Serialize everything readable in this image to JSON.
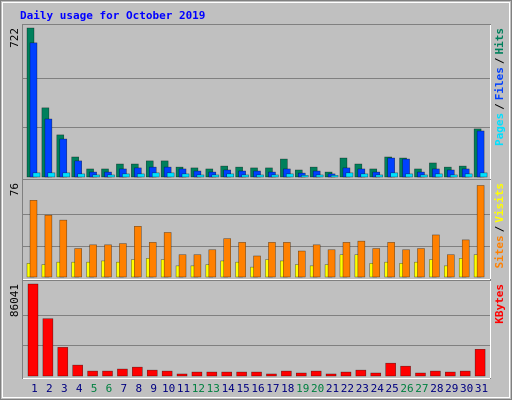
{
  "chart_data": [
    {
      "type": "bar",
      "title": "Daily usage for October 2019",
      "ylim": [
        0,
        722
      ],
      "yticks": [
        722
      ],
      "grid": true,
      "series": [
        {
          "name": "Hits",
          "color": "#00805c",
          "values": [
            722,
            335,
            204,
            97,
            39,
            39,
            63,
            63,
            78,
            78,
            48,
            44,
            39,
            53,
            48,
            44,
            44,
            87,
            34,
            48,
            24,
            92,
            63,
            39,
            97,
            92,
            39,
            68,
            48,
            53,
            233
          ]
        },
        {
          "name": "Files",
          "color": "#0040ff",
          "values": [
            650,
            281,
            184,
            78,
            24,
            24,
            39,
            44,
            48,
            48,
            39,
            29,
            24,
            34,
            29,
            29,
            24,
            39,
            19,
            29,
            15,
            44,
            39,
            24,
            92,
            87,
            24,
            39,
            34,
            39,
            223
          ]
        },
        {
          "name": "Pages",
          "color": "#00e0ff",
          "values": [
            20,
            20,
            20,
            15,
            10,
            10,
            15,
            15,
            20,
            20,
            15,
            10,
            10,
            15,
            10,
            10,
            10,
            15,
            8,
            10,
            8,
            20,
            15,
            10,
            20,
            15,
            10,
            15,
            10,
            15,
            20
          ]
        }
      ]
    },
    {
      "type": "bar",
      "ylim": [
        0,
        76
      ],
      "yticks": [
        76
      ],
      "grid": true,
      "series": [
        {
          "name": "Visits",
          "color": "#ffff00",
          "values": [
            11,
            10,
            12,
            12,
            12,
            13,
            12,
            14,
            15,
            14,
            9,
            9,
            10,
            13,
            12,
            8,
            14,
            13,
            10,
            9,
            10,
            18,
            18,
            11,
            12,
            11,
            12,
            14,
            9,
            15,
            18
          ]
        },
        {
          "name": "Sites",
          "color": "#ff8000",
          "values": [
            62,
            50,
            46,
            23,
            26,
            26,
            27,
            41,
            28,
            36,
            18,
            18,
            22,
            31,
            28,
            17,
            28,
            28,
            21,
            26,
            22,
            28,
            29,
            23,
            28,
            22,
            23,
            34,
            18,
            30,
            74
          ]
        }
      ]
    },
    {
      "type": "bar",
      "ylim": [
        0,
        86041
      ],
      "yticks": [
        86041
      ],
      "grid": true,
      "categories": [
        "1",
        "2",
        "3",
        "4",
        "5",
        "6",
        "7",
        "8",
        "9",
        "10",
        "11",
        "12",
        "13",
        "14",
        "15",
        "16",
        "17",
        "18",
        "19",
        "20",
        "21",
        "22",
        "23",
        "24",
        "25",
        "26",
        "27",
        "28",
        "29",
        "30",
        "31"
      ],
      "category_colors": [
        "#000080",
        "#000080",
        "#000080",
        "#000080",
        "#008040",
        "#008040",
        "#000080",
        "#000080",
        "#000080",
        "#000080",
        "#000080",
        "#008040",
        "#008040",
        "#000080",
        "#000080",
        "#000080",
        "#000080",
        "#000080",
        "#008040",
        "#008040",
        "#000080",
        "#000080",
        "#000080",
        "#000080",
        "#000080",
        "#008040",
        "#008040",
        "#000080",
        "#000080",
        "#000080",
        "#000080"
      ],
      "series": [
        {
          "name": "KBytes",
          "color": "#ff0000",
          "values": [
            86041,
            53600,
            26800,
            10200,
            4600,
            4600,
            6500,
            8300,
            5500,
            4600,
            1900,
            3700,
            3700,
            3700,
            3700,
            3700,
            1900,
            4600,
            2800,
            4600,
            1900,
            3700,
            5500,
            2800,
            12000,
            9200,
            2800,
            4600,
            3700,
            4600,
            25000
          ]
        }
      ]
    }
  ],
  "legend_separator": "/"
}
